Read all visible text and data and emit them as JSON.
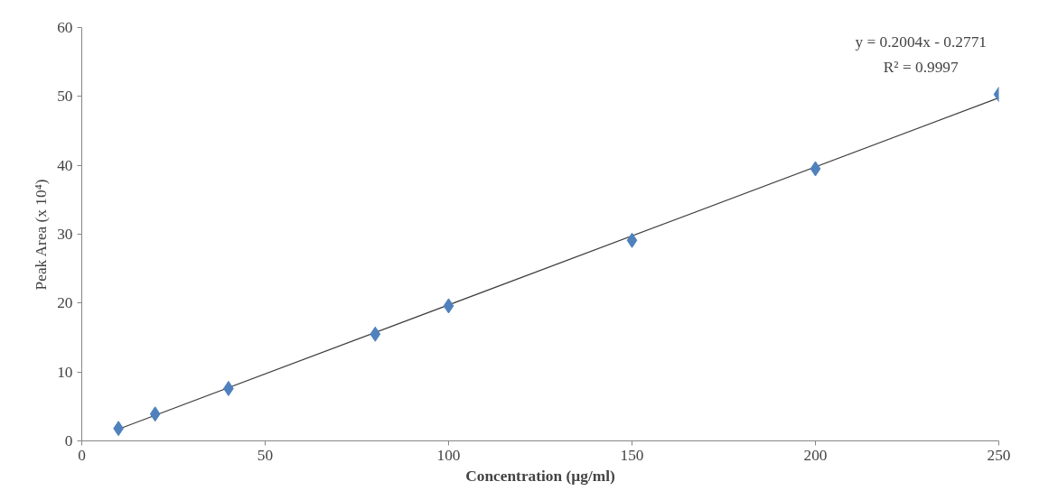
{
  "chart_data": {
    "type": "scatter",
    "xlabel": "Concentration (µg/ml)",
    "ylabel": "Peak Area (x 10⁴)",
    "x": [
      10,
      20,
      40,
      80,
      100,
      150,
      200,
      250
    ],
    "series": [
      {
        "color": "#4f81bd",
        "marker": "diamond",
        "values": [
          1.8,
          3.9,
          7.6,
          15.5,
          19.6,
          29.1,
          39.5,
          50.3
        ]
      },
      {
        "type": "line",
        "color": "#404040",
        "marker": "none",
        "line_style": "solid",
        "x": [
          10,
          250
        ],
        "values": [
          1.7,
          49.8
        ]
      }
    ],
    "annotations": [
      "y = 0.2004x - 0.2771",
      "R² = 0.9997"
    ],
    "xlim": [
      0,
      250
    ],
    "ylim": [
      0,
      60
    ],
    "xticks": [
      0,
      50,
      100,
      150,
      200,
      250
    ],
    "yticks": [
      0,
      10,
      20,
      30,
      40,
      50,
      60
    ],
    "grid": false
  }
}
